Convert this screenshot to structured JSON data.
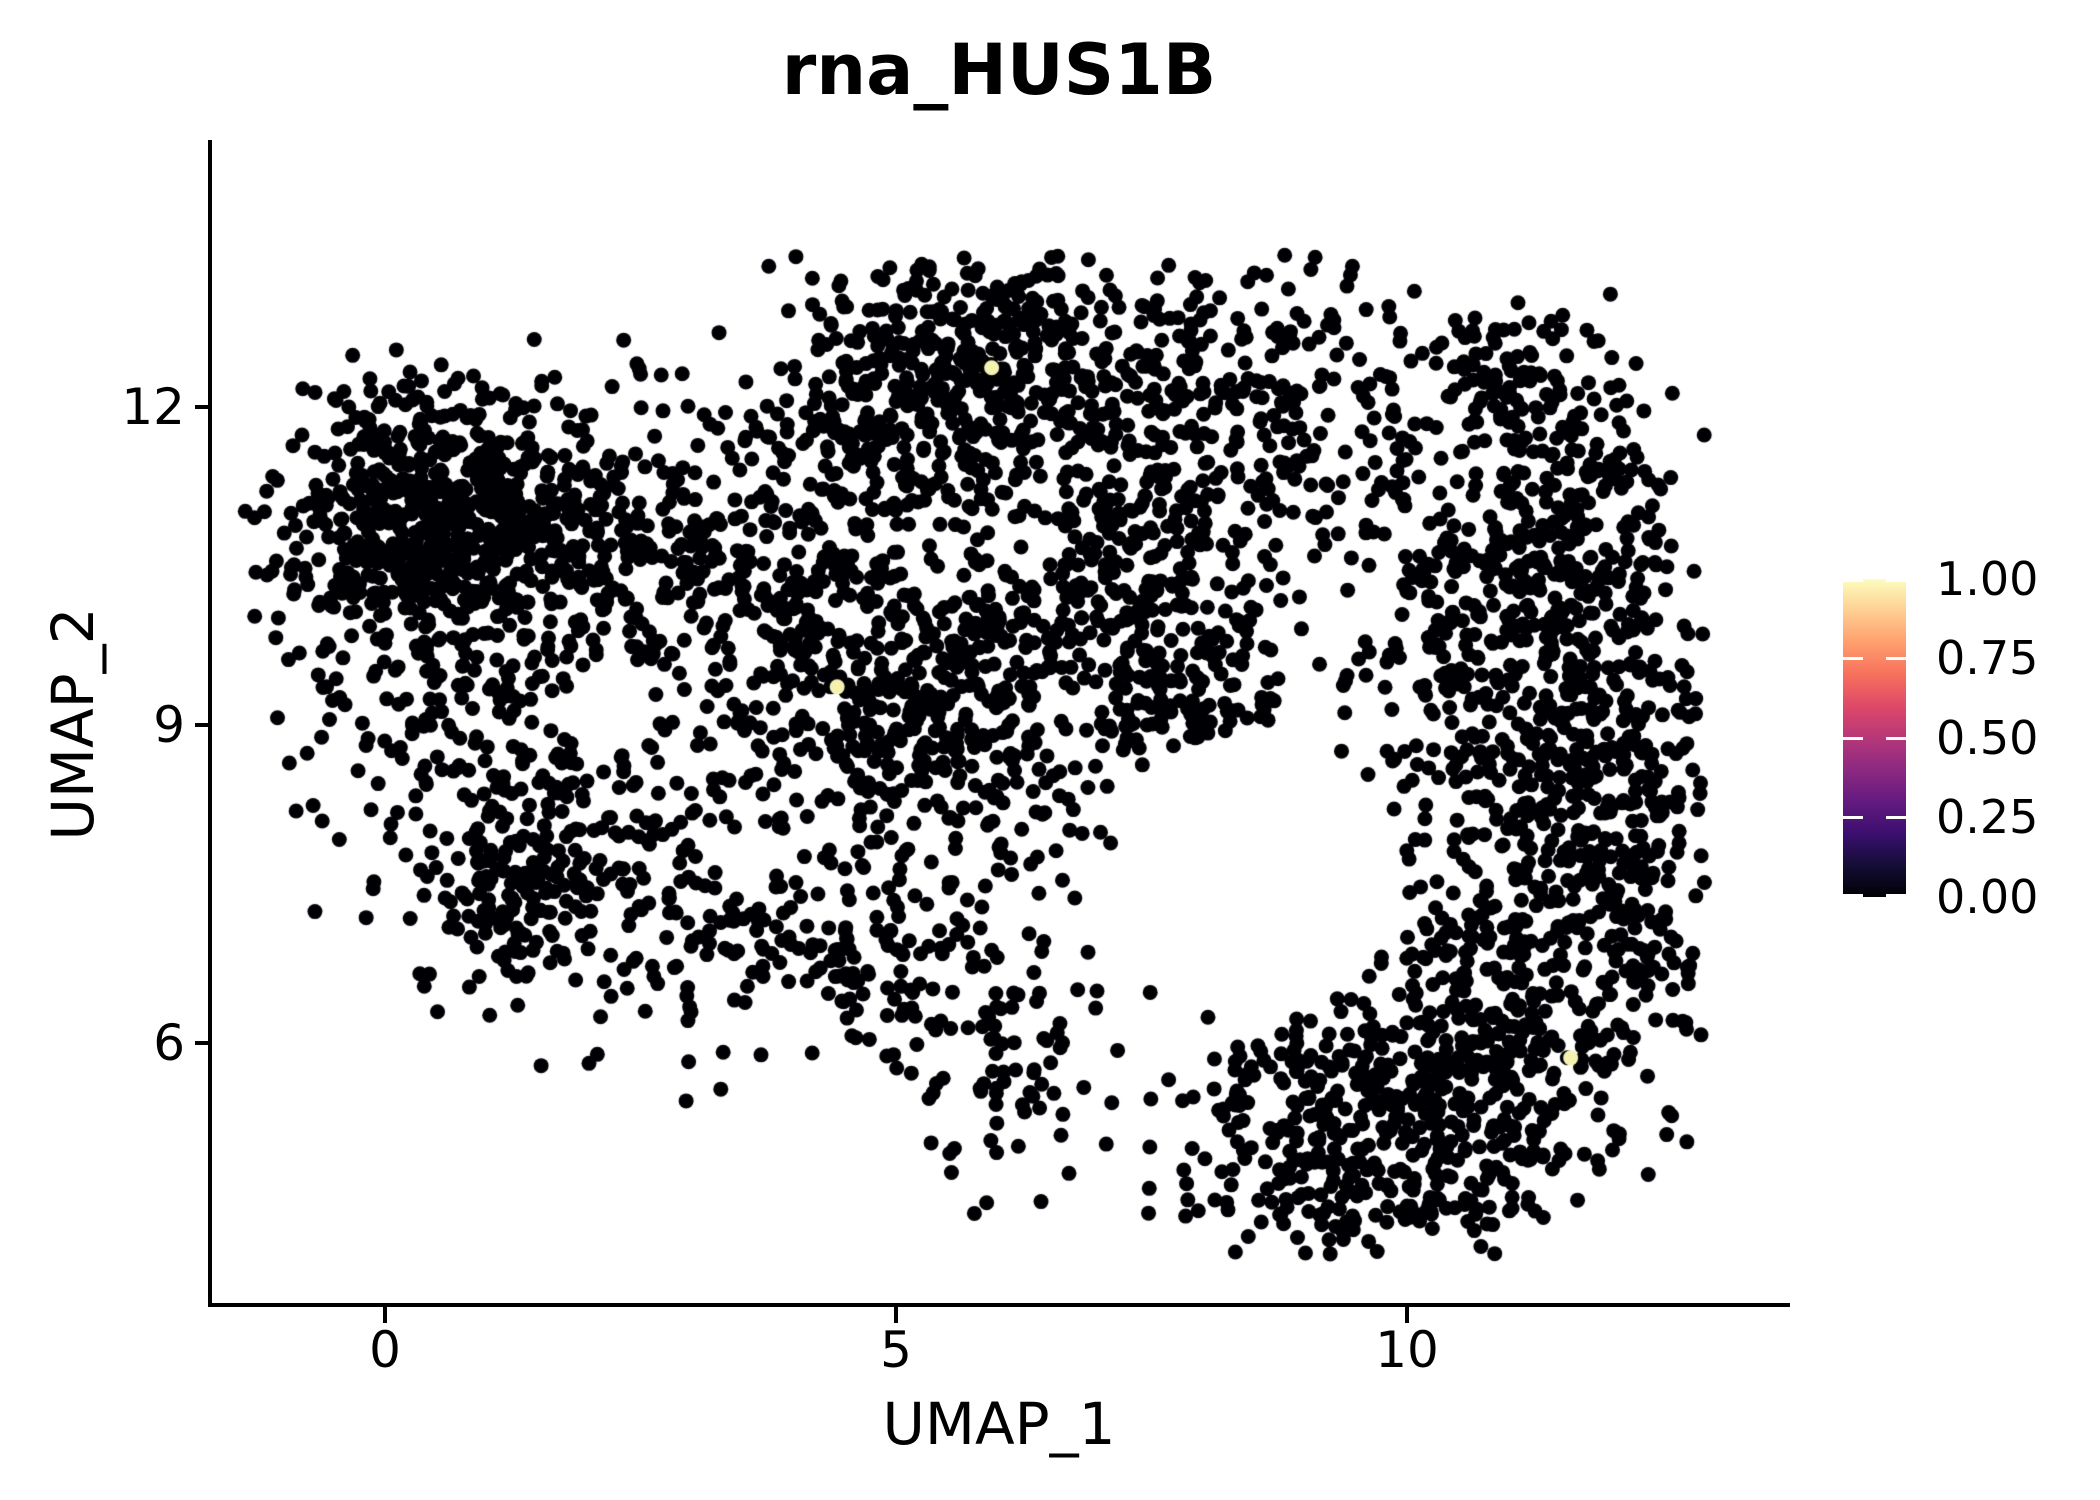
{
  "title": "rna_HUS1B",
  "chart_data": {
    "type": "scatter",
    "title": "rna_HUS1B",
    "xlabel": "UMAP_1",
    "ylabel": "UMAP_2",
    "xlim": [
      -1.7,
      13.7
    ],
    "ylim": [
      3.5,
      14.5
    ],
    "grid": false,
    "x_ticks": [
      {
        "value": 0,
        "label": "0"
      },
      {
        "value": 5,
        "label": "5"
      },
      {
        "value": 10,
        "label": "10"
      }
    ],
    "y_ticks": [
      {
        "value": 12,
        "label": "12"
      },
      {
        "value": 9,
        "label": "9"
      },
      {
        "value": 6,
        "label": "6"
      }
    ],
    "point_color": "#000004",
    "highlight_color": "#F5F2B1",
    "point_radius_px": 7.5,
    "n_cells_approx": 5000,
    "seed": 42,
    "clusters": [
      {
        "name": "top-left-core",
        "x": 0.55,
        "y": 11.05,
        "sx": 0.8,
        "sy": 0.55,
        "n": 500
      },
      {
        "name": "top-left-spread",
        "x": 0.95,
        "y": 10.6,
        "sx": 1.3,
        "sy": 0.85,
        "n": 320
      },
      {
        "name": "left-arm",
        "x": 1.1,
        "y": 8.8,
        "sx": 0.85,
        "sy": 0.75,
        "n": 170
      },
      {
        "name": "left-knot",
        "x": 1.3,
        "y": 7.3,
        "sx": 0.5,
        "sy": 0.42,
        "n": 140
      },
      {
        "name": "left-sparse",
        "x": 2.3,
        "y": 8.0,
        "sx": 0.85,
        "sy": 0.95,
        "n": 90
      },
      {
        "name": "mid-upper",
        "x": 3.4,
        "y": 10.4,
        "sx": 0.85,
        "sy": 0.8,
        "n": 210
      },
      {
        "name": "center-pocket",
        "x": 4.8,
        "y": 9.5,
        "sx": 0.85,
        "sy": 0.7,
        "n": 250
      },
      {
        "name": "center-knot",
        "x": 5.7,
        "y": 8.95,
        "sx": 0.6,
        "sy": 0.7,
        "n": 170
      },
      {
        "name": "top-center",
        "x": 5.85,
        "y": 12.4,
        "sx": 0.85,
        "sy": 0.6,
        "n": 400
      },
      {
        "name": "top-center-west",
        "x": 4.7,
        "y": 11.8,
        "sx": 0.65,
        "sy": 0.6,
        "n": 140
      },
      {
        "name": "top-right",
        "x": 8.4,
        "y": 11.9,
        "sx": 1.0,
        "sy": 0.75,
        "n": 300
      },
      {
        "name": "top-right-far",
        "x": 10.9,
        "y": 12.3,
        "sx": 0.4,
        "sy": 0.35,
        "n": 80
      },
      {
        "name": "right-big",
        "x": 11.3,
        "y": 8.4,
        "sx": 0.8,
        "sy": 1.4,
        "n": 520
      },
      {
        "name": "right-upper",
        "x": 11.0,
        "y": 10.4,
        "sx": 0.7,
        "sy": 0.75,
        "n": 190
      },
      {
        "name": "right-edge",
        "x": 12.25,
        "y": 7.9,
        "sx": 0.45,
        "sy": 1.15,
        "n": 170
      },
      {
        "name": "right-high",
        "x": 11.7,
        "y": 11.2,
        "sx": 0.5,
        "sy": 0.7,
        "n": 120
      },
      {
        "name": "bottom-right",
        "x": 9.6,
        "y": 5.15,
        "sx": 0.95,
        "sy": 0.7,
        "n": 430
      },
      {
        "name": "bottom-right-east",
        "x": 10.85,
        "y": 5.9,
        "sx": 0.6,
        "sy": 0.75,
        "n": 170
      },
      {
        "name": "tail-upper",
        "x": 4.9,
        "y": 6.9,
        "sx": 0.5,
        "sy": 0.5,
        "n": 70
      },
      {
        "name": "tail-lower",
        "x": 6.1,
        "y": 5.9,
        "sx": 0.55,
        "sy": 0.55,
        "n": 80
      },
      {
        "name": "mid-bottom",
        "x": 3.6,
        "y": 6.9,
        "sx": 0.7,
        "sy": 0.6,
        "n": 100
      },
      {
        "name": "center-right-band",
        "x": 7.1,
        "y": 10.4,
        "sx": 0.85,
        "sy": 0.8,
        "n": 200
      },
      {
        "name": "center-right-lower",
        "x": 7.8,
        "y": 9.3,
        "sx": 0.6,
        "sy": 0.55,
        "n": 140
      },
      {
        "name": "diffuse-film",
        "x": 6.0,
        "y": 9.5,
        "sx": 3.3,
        "sy": 2.2,
        "n": 160
      }
    ],
    "holes": [
      {
        "x": 8.55,
        "y": 7.6,
        "rx": 1.45,
        "ry": 1.35
      },
      {
        "x": 2.2,
        "y": 9.2,
        "rx": 0.45,
        "ry": 0.45
      }
    ],
    "bounds": {
      "xmin": -1.38,
      "xmax": 12.9,
      "ymin": 4.0,
      "ymax": 13.45
    },
    "highlight_points": [
      {
        "x": 5.93,
        "y": 12.37,
        "value": 1.0
      },
      {
        "x": 4.42,
        "y": 9.36,
        "value": 1.0
      },
      {
        "x": 11.59,
        "y": 5.86,
        "value": 1.0
      }
    ],
    "colorbar": {
      "colormap": "magma",
      "labels": [
        "1.00",
        "0.75",
        "0.50",
        "0.25",
        "0.00"
      ],
      "values": [
        1.0,
        0.75,
        0.5,
        0.25,
        0.0
      ],
      "stops_top_to_bottom": [
        "#fcfdbf",
        "#fecf92",
        "#fe9f6d",
        "#f7705c",
        "#de4968",
        "#b73779",
        "#8c2981",
        "#641a80",
        "#3b0f70",
        "#140e36",
        "#000004"
      ]
    }
  }
}
